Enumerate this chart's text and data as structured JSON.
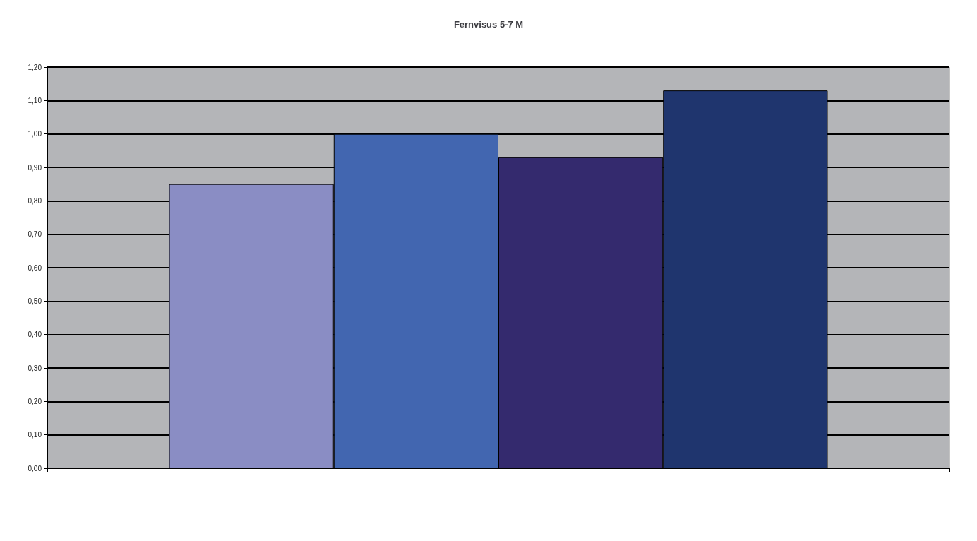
{
  "chart_data": {
    "type": "bar",
    "title": "Fernvisus 5-7 M",
    "categories": [
      null
    ],
    "series": [
      {
        "color": "#8a8dc4",
        "values": [
          0.85
        ]
      },
      {
        "color": "#4266b0",
        "values": [
          1.0
        ]
      },
      {
        "color": "#342a6e",
        "values": [
          0.93
        ]
      },
      {
        "color": "#1f356e",
        "values": [
          1.13
        ]
      }
    ],
    "ylim": [
      0,
      1.2
    ],
    "yticks": [
      {
        "value": 0,
        "label": "0,00"
      },
      {
        "value": 0.1,
        "label": "0,10"
      },
      {
        "value": 0.2,
        "label": "0,20"
      },
      {
        "value": 0.3,
        "label": "0,30"
      },
      {
        "value": 0.4,
        "label": "0,40"
      },
      {
        "value": 0.5,
        "label": "0,50"
      },
      {
        "value": 0.6,
        "label": "0,60"
      },
      {
        "value": 0.7,
        "label": "0,70"
      },
      {
        "value": 0.8,
        "label": "0,80"
      },
      {
        "value": 0.9,
        "label": "0,90"
      },
      {
        "value": 1.0,
        "label": "1,00"
      },
      {
        "value": 1.1,
        "label": "1,10"
      },
      {
        "value": 1.2,
        "label": "1,20"
      }
    ],
    "grid": "y"
  }
}
